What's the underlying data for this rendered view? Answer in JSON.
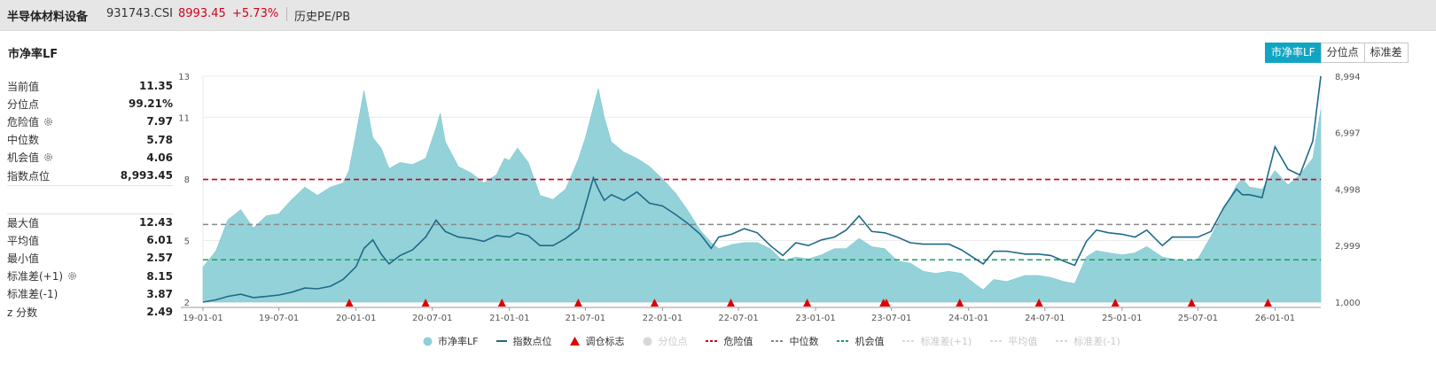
{
  "header": {
    "name": "半导体材料设备",
    "code": "931743.CSI",
    "price": "8993.45",
    "change": "+5.73%",
    "link": "历史PE/PB"
  },
  "metric_title": "市净率LF",
  "tabs": [
    {
      "label": "市净率LF",
      "active": true
    },
    {
      "label": "分位点",
      "active": false
    },
    {
      "label": "标准差",
      "active": false
    }
  ],
  "stats_top": [
    {
      "label": "当前值",
      "value": "11.35",
      "gear": false
    },
    {
      "label": "分位点",
      "value": "99.21%",
      "gear": false
    },
    {
      "label": "危险值",
      "value": "7.97",
      "gear": true
    },
    {
      "label": "中位数",
      "value": "5.78",
      "gear": false
    },
    {
      "label": "机会值",
      "value": "4.06",
      "gear": true
    },
    {
      "label": "指数点位",
      "value": "8,993.45",
      "gear": false
    }
  ],
  "stats_bottom": [
    {
      "label": "最大值",
      "value": "12.43",
      "gear": false
    },
    {
      "label": "平均值",
      "value": "6.01",
      "gear": false
    },
    {
      "label": "最小值",
      "value": "2.57",
      "gear": false
    },
    {
      "label": "标准差(+1)",
      "value": "8.15",
      "gear": true
    },
    {
      "label": "标准差(-1)",
      "value": "3.87",
      "gear": false
    },
    {
      "label": "z 分数",
      "value": "2.49",
      "gear": false
    }
  ],
  "legend": [
    {
      "label": "市净率LF",
      "type": "circle",
      "color": "#8fd0d8",
      "active": true
    },
    {
      "label": "指数点位",
      "type": "line",
      "color": "#1f6a8a",
      "active": true
    },
    {
      "label": "调仓标志",
      "type": "triangle",
      "color": "#e00000",
      "active": true
    },
    {
      "label": "分位点",
      "type": "circle",
      "color": "#cccccc",
      "active": false
    },
    {
      "label": "危险值",
      "type": "dash",
      "color": "#d0021b",
      "active": true
    },
    {
      "label": "中位数",
      "type": "dash",
      "color": "#888888",
      "active": true
    },
    {
      "label": "机会值",
      "type": "dash",
      "color": "#17a05d",
      "active": true
    },
    {
      "label": "标准差(+1)",
      "type": "dash",
      "color": "#d8d8d8",
      "active": false
    },
    {
      "label": "平均值",
      "type": "dash",
      "color": "#d8d8d8",
      "active": false
    },
    {
      "label": "标准差(-1)",
      "type": "dash",
      "color": "#d8d8d8",
      "active": false
    }
  ],
  "chart_data": {
    "type": "area",
    "x_ticks": [
      "19-01-01",
      "19-07-01",
      "20-01-01",
      "20-07-01",
      "21-01-01",
      "21-07-01",
      "22-01-01",
      "22-07-01",
      "23-01-01",
      "23-07-01",
      "24-01-01",
      "24-07-01",
      "25-01-01",
      "25-07-01",
      "26-01-01"
    ],
    "y_left_ticks": [
      2,
      5,
      8,
      11,
      13
    ],
    "y_left_range": [
      2,
      13
    ],
    "y_right_ticks": [
      "1,000",
      "2,999",
      "4,998",
      "6,997",
      "8,994"
    ],
    "y_right_range": [
      1000,
      8994
    ],
    "reference_lines": [
      {
        "name": "危险值",
        "value": 7.97,
        "color": "#d0021b"
      },
      {
        "name": "中位数",
        "value": 5.78,
        "color": "#888888"
      },
      {
        "name": "机会值",
        "value": 4.06,
        "color": "#17a05d"
      }
    ],
    "rebalance_markers": [
      "19-12-16",
      "20-06-15",
      "20-12-14",
      "21-06-14",
      "21-12-13",
      "22-06-13",
      "22-12-12",
      "23-06-12",
      "23-06-19",
      "23-12-11",
      "24-06-17",
      "24-12-16",
      "25-06-16",
      "25-12-15"
    ],
    "series": [
      {
        "name": "市净率LF",
        "color": "#8fd0d8",
        "points": [
          [
            "19-01-01",
            3.7
          ],
          [
            "19-02-01",
            4.5
          ],
          [
            "19-03-01",
            6.0
          ],
          [
            "19-04-01",
            6.5
          ],
          [
            "19-05-01",
            5.6
          ],
          [
            "19-06-01",
            6.2
          ],
          [
            "19-07-01",
            6.3
          ],
          [
            "19-08-01",
            7.0
          ],
          [
            "19-09-01",
            7.6
          ],
          [
            "19-10-01",
            7.2
          ],
          [
            "19-11-01",
            7.6
          ],
          [
            "19-12-01",
            7.8
          ],
          [
            "19-12-15",
            8.4
          ],
          [
            "20-01-01",
            10.2
          ],
          [
            "20-01-20",
            12.3
          ],
          [
            "20-02-10",
            10.0
          ],
          [
            "20-03-01",
            9.5
          ],
          [
            "20-03-20",
            8.5
          ],
          [
            "20-04-15",
            8.8
          ],
          [
            "20-05-15",
            8.7
          ],
          [
            "20-06-15",
            9.0
          ],
          [
            "20-07-10",
            10.5
          ],
          [
            "20-07-20",
            11.2
          ],
          [
            "20-08-01",
            9.8
          ],
          [
            "20-09-01",
            8.6
          ],
          [
            "20-10-01",
            8.3
          ],
          [
            "20-11-01",
            7.8
          ],
          [
            "20-12-01",
            8.2
          ],
          [
            "20-12-20",
            9.0
          ],
          [
            "21-01-01",
            8.9
          ],
          [
            "21-01-20",
            9.5
          ],
          [
            "21-02-15",
            8.8
          ],
          [
            "21-03-15",
            7.2
          ],
          [
            "21-04-15",
            7.0
          ],
          [
            "21-05-15",
            7.5
          ],
          [
            "21-06-15",
            9.0
          ],
          [
            "21-07-01",
            10.0
          ],
          [
            "21-07-20",
            11.5
          ],
          [
            "21-08-01",
            12.4
          ],
          [
            "21-08-15",
            11.0
          ],
          [
            "21-09-01",
            9.8
          ],
          [
            "21-10-01",
            9.3
          ],
          [
            "21-11-01",
            9.0
          ],
          [
            "21-12-01",
            8.6
          ],
          [
            "22-01-01",
            8.0
          ],
          [
            "22-02-01",
            7.3
          ],
          [
            "22-03-01",
            6.5
          ],
          [
            "22-04-01",
            5.5
          ],
          [
            "22-04-27",
            4.9
          ],
          [
            "22-05-15",
            4.6
          ],
          [
            "22-06-15",
            4.8
          ],
          [
            "22-07-15",
            4.9
          ],
          [
            "22-08-15",
            4.9
          ],
          [
            "22-09-15",
            4.6
          ],
          [
            "22-10-15",
            4.0
          ],
          [
            "22-11-15",
            4.2
          ],
          [
            "22-12-15",
            4.1
          ],
          [
            "23-01-15",
            4.3
          ],
          [
            "23-02-15",
            4.6
          ],
          [
            "23-03-15",
            4.6
          ],
          [
            "23-04-15",
            5.1
          ],
          [
            "23-05-15",
            4.7
          ],
          [
            "23-06-15",
            4.6
          ],
          [
            "23-07-15",
            4.0
          ],
          [
            "23-08-15",
            3.9
          ],
          [
            "23-09-15",
            3.5
          ],
          [
            "23-10-15",
            3.4
          ],
          [
            "23-11-15",
            3.5
          ],
          [
            "23-12-15",
            3.4
          ],
          [
            "24-01-15",
            2.9
          ],
          [
            "24-02-05",
            2.6
          ],
          [
            "24-03-01",
            3.1
          ],
          [
            "24-04-01",
            3.0
          ],
          [
            "24-05-15",
            3.3
          ],
          [
            "24-06-15",
            3.3
          ],
          [
            "24-07-15",
            3.2
          ],
          [
            "24-08-15",
            3.0
          ],
          [
            "24-09-10",
            2.9
          ],
          [
            "24-10-08",
            4.2
          ],
          [
            "24-11-01",
            4.5
          ],
          [
            "24-12-01",
            4.4
          ],
          [
            "25-01-01",
            4.3
          ],
          [
            "25-02-01",
            4.4
          ],
          [
            "25-03-01",
            4.7
          ],
          [
            "25-04-07",
            4.2
          ],
          [
            "25-05-01",
            4.1
          ],
          [
            "25-06-01",
            4.0
          ],
          [
            "25-07-01",
            4.1
          ],
          [
            "25-08-01",
            5.2
          ],
          [
            "25-09-01",
            6.5
          ],
          [
            "25-10-01",
            7.7
          ],
          [
            "25-10-15",
            8.0
          ],
          [
            "25-11-01",
            7.6
          ],
          [
            "25-12-01",
            7.5
          ],
          [
            "26-01-01",
            8.4
          ],
          [
            "26-02-01",
            7.7
          ],
          [
            "26-03-01",
            8.2
          ],
          [
            "26-04-01",
            9.0
          ],
          [
            "26-04-20",
            11.35
          ]
        ]
      },
      {
        "name": "指数点位",
        "color": "#1f6a8a",
        "points": [
          [
            "19-01-01",
            1000
          ],
          [
            "19-02-01",
            1080
          ],
          [
            "19-03-01",
            1200
          ],
          [
            "19-04-01",
            1280
          ],
          [
            "19-05-01",
            1160
          ],
          [
            "19-06-01",
            1200
          ],
          [
            "19-07-01",
            1250
          ],
          [
            "19-08-01",
            1350
          ],
          [
            "19-09-01",
            1500
          ],
          [
            "19-10-01",
            1470
          ],
          [
            "19-11-01",
            1560
          ],
          [
            "19-12-01",
            1800
          ],
          [
            "20-01-01",
            2250
          ],
          [
            "20-01-20",
            2900
          ],
          [
            "20-02-10",
            3200
          ],
          [
            "20-03-01",
            2700
          ],
          [
            "20-03-20",
            2350
          ],
          [
            "20-04-15",
            2650
          ],
          [
            "20-05-15",
            2850
          ],
          [
            "20-06-15",
            3300
          ],
          [
            "20-07-10",
            3900
          ],
          [
            "20-08-01",
            3500
          ],
          [
            "20-09-01",
            3300
          ],
          [
            "20-10-01",
            3250
          ],
          [
            "20-11-01",
            3150
          ],
          [
            "20-12-01",
            3350
          ],
          [
            "21-01-01",
            3300
          ],
          [
            "21-01-20",
            3450
          ],
          [
            "21-02-15",
            3350
          ],
          [
            "21-03-15",
            3000
          ],
          [
            "21-04-15",
            3000
          ],
          [
            "21-05-15",
            3250
          ],
          [
            "21-06-15",
            3600
          ],
          [
            "21-07-01",
            4400
          ],
          [
            "21-07-20",
            5400
          ],
          [
            "21-08-01",
            5000
          ],
          [
            "21-08-15",
            4600
          ],
          [
            "21-09-01",
            4800
          ],
          [
            "21-10-01",
            4600
          ],
          [
            "21-11-01",
            4900
          ],
          [
            "21-12-01",
            4500
          ],
          [
            "22-01-01",
            4400
          ],
          [
            "22-02-01",
            4100
          ],
          [
            "22-03-01",
            3800
          ],
          [
            "22-04-01",
            3400
          ],
          [
            "22-04-27",
            2900
          ],
          [
            "22-05-15",
            3300
          ],
          [
            "22-06-15",
            3400
          ],
          [
            "22-07-15",
            3600
          ],
          [
            "22-08-15",
            3450
          ],
          [
            "22-09-15",
            3000
          ],
          [
            "22-10-15",
            2650
          ],
          [
            "22-11-15",
            3100
          ],
          [
            "22-12-15",
            3000
          ],
          [
            "23-01-15",
            3200
          ],
          [
            "23-02-15",
            3300
          ],
          [
            "23-03-15",
            3550
          ],
          [
            "23-04-15",
            4050
          ],
          [
            "23-05-15",
            3500
          ],
          [
            "23-06-15",
            3450
          ],
          [
            "23-07-15",
            3300
          ],
          [
            "23-08-15",
            3100
          ],
          [
            "23-09-15",
            3050
          ],
          [
            "23-10-15",
            3050
          ],
          [
            "23-11-15",
            3050
          ],
          [
            "23-12-15",
            2850
          ],
          [
            "24-01-15",
            2550
          ],
          [
            "24-02-05",
            2350
          ],
          [
            "24-03-01",
            2800
          ],
          [
            "24-04-01",
            2800
          ],
          [
            "24-05-15",
            2700
          ],
          [
            "24-06-15",
            2700
          ],
          [
            "24-07-15",
            2650
          ],
          [
            "24-08-15",
            2450
          ],
          [
            "24-09-10",
            2300
          ],
          [
            "24-10-08",
            3150
          ],
          [
            "24-11-01",
            3550
          ],
          [
            "24-12-01",
            3450
          ],
          [
            "25-01-01",
            3400
          ],
          [
            "25-02-01",
            3300
          ],
          [
            "25-03-01",
            3550
          ],
          [
            "25-04-07",
            3000
          ],
          [
            "25-05-01",
            3300
          ],
          [
            "25-06-01",
            3300
          ],
          [
            "25-07-01",
            3300
          ],
          [
            "25-08-01",
            3500
          ],
          [
            "25-09-01",
            4350
          ],
          [
            "25-10-01",
            5000
          ],
          [
            "25-10-15",
            4800
          ],
          [
            "25-11-01",
            4800
          ],
          [
            "25-12-01",
            4700
          ],
          [
            "26-01-01",
            6500
          ],
          [
            "26-02-01",
            5700
          ],
          [
            "26-03-01",
            5500
          ],
          [
            "26-04-01",
            6700
          ],
          [
            "26-04-20",
            8993
          ]
        ]
      }
    ]
  }
}
